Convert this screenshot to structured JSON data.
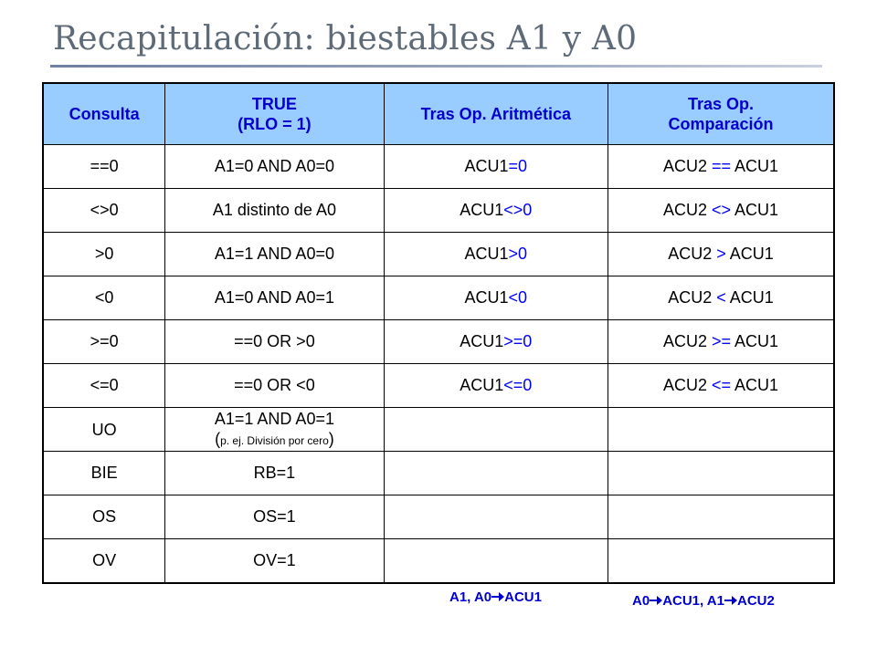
{
  "title": "Recapitulación: biestables A1 y A0",
  "table": {
    "headers": [
      {
        "line1": "Consulta",
        "line2": ""
      },
      {
        "line1": "TRUE",
        "line2": "(RLO = 1)"
      },
      {
        "line1": "Tras Op. Aritmética",
        "line2": ""
      },
      {
        "line1": "Tras Op.",
        "line2": "Comparación"
      }
    ],
    "rows": [
      {
        "consulta": "==0",
        "true_a": "A1=0 AND A0=0",
        "true_b": "",
        "arit_a": "ACU1",
        "arit_op": "=0",
        "comp_a": "ACU2 ",
        "comp_op": "==",
        "comp_b": " ACU1"
      },
      {
        "consulta": "<>0",
        "true_a": "A1 distinto de A0",
        "true_b": "",
        "arit_a": "ACU1",
        "arit_op": "<>0",
        "comp_a": "ACU2 ",
        "comp_op": "<>",
        "comp_b": " ACU1"
      },
      {
        "consulta": ">0",
        "true_a": "A1=1 AND A0=0",
        "true_b": "",
        "arit_a": "ACU1",
        "arit_op": ">0",
        "comp_a": "ACU2 ",
        "comp_op": ">",
        "comp_b": " ACU1"
      },
      {
        "consulta": "<0",
        "true_a": "A1=0 AND A0=1",
        "true_b": "",
        "arit_a": "ACU1",
        "arit_op": "<0",
        "comp_a": "ACU2 ",
        "comp_op": "<",
        "comp_b": " ACU1"
      },
      {
        "consulta": ">=0",
        "true_a": "==0 OR >0",
        "true_b": "",
        "arit_a": "ACU1",
        "arit_op": ">=0",
        "comp_a": "ACU2 ",
        "comp_op": ">=",
        "comp_b": " ACU1"
      },
      {
        "consulta": "<=0",
        "true_a": "==0 OR <0",
        "true_b": "",
        "arit_a": "ACU1",
        "arit_op": "<=0",
        "comp_a": "ACU2 ",
        "comp_op": "<=",
        "comp_b": " ACU1"
      },
      {
        "consulta": "UO",
        "true_a": "A1=1 AND A0=1",
        "true_b": "p. ej. División por cero",
        "arit_a": "",
        "arit_op": "",
        "comp_a": "",
        "comp_op": "",
        "comp_b": ""
      },
      {
        "consulta": "BIE",
        "true_a": "RB=1",
        "true_b": "",
        "arit_a": "",
        "arit_op": "",
        "comp_a": "",
        "comp_op": "",
        "comp_b": ""
      },
      {
        "consulta": "OS",
        "true_a": "OS=1",
        "true_b": "",
        "arit_a": "",
        "arit_op": "",
        "comp_a": "",
        "comp_op": "",
        "comp_b": ""
      },
      {
        "consulta": "OV",
        "true_a": "OV=1",
        "true_b": "",
        "arit_a": "",
        "arit_op": "",
        "comp_a": "",
        "comp_op": "",
        "comp_b": ""
      }
    ]
  },
  "notes": {
    "arith": {
      "pre": "A1, A0",
      "post": "ACU1"
    },
    "comp": {
      "a": "A0",
      "b": "ACU1, A1",
      "c": "ACU2"
    }
  },
  "colors": {
    "header_bg": "#99ccff",
    "header_text": "#0000cc",
    "accent_blue": "#0000ff"
  }
}
